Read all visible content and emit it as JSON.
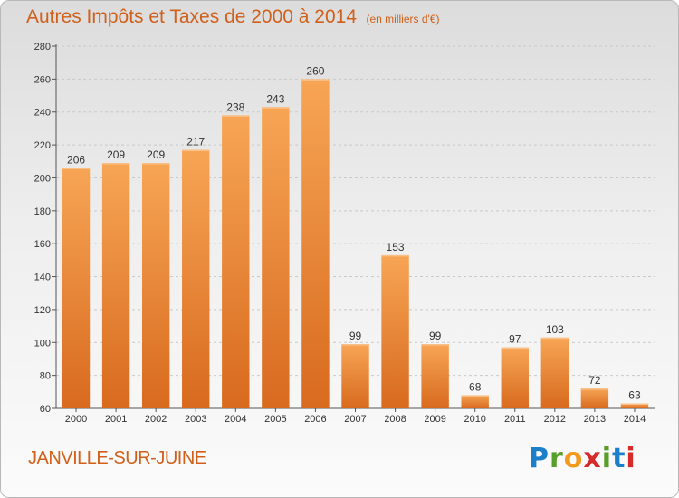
{
  "header": {
    "title": "Autres Impôts et Taxes de 2000 à 2014",
    "unit": "(en milliers d'€)"
  },
  "commune": "JANVILLE-SUR-JUINE",
  "brand": {
    "letters": [
      "P",
      "r",
      "o",
      "x",
      "i",
      "t",
      "i"
    ],
    "colors": [
      "#1b7fc9",
      "#5a9e2a",
      "#f19a1c",
      "#d52b2b",
      "#5a9e2a",
      "#1b7fc9",
      "#d52b2b"
    ]
  },
  "chart_data": {
    "type": "bar",
    "categories": [
      "2000",
      "2001",
      "2002",
      "2003",
      "2004",
      "2005",
      "2006",
      "2007",
      "2008",
      "2009",
      "2010",
      "2011",
      "2012",
      "2013",
      "2014"
    ],
    "values": [
      206,
      209,
      209,
      217,
      238,
      243,
      260,
      99,
      153,
      99,
      68,
      97,
      103,
      72,
      63
    ],
    "title": "Autres Impôts et Taxes de 2000 à 2014",
    "ylim": [
      60,
      280
    ],
    "yticks": [
      60,
      80,
      100,
      120,
      140,
      160,
      180,
      200,
      220,
      240,
      260,
      280
    ],
    "grid": true,
    "bar_color": "#f0913a"
  }
}
